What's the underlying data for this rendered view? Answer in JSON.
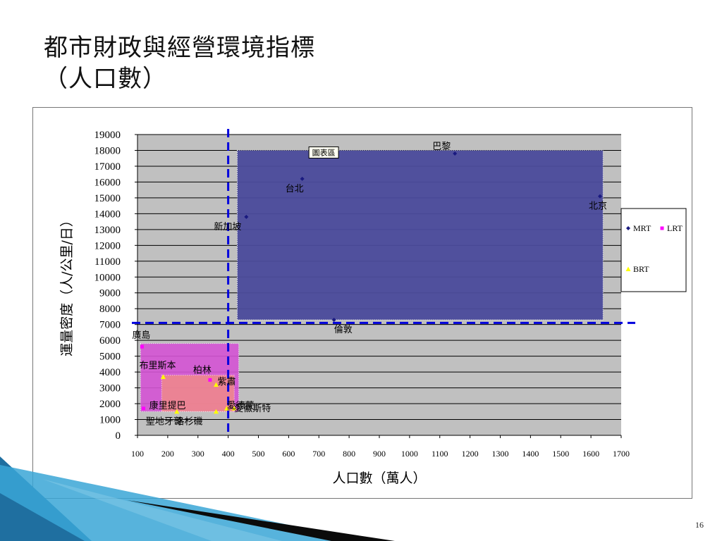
{
  "slide": {
    "title_line1": "都市財政與經營環境指標",
    "title_line2": "（人口數）",
    "page_number": "16"
  },
  "tooltip_label": "圖表區",
  "chart_data": {
    "type": "scatter",
    "xlabel": "人口數（萬人）",
    "ylabel": "運量密度（人/公里/日）",
    "xlim": [
      100,
      1700
    ],
    "ylim": [
      0,
      19000
    ],
    "x_ticks": [
      100,
      200,
      300,
      400,
      500,
      600,
      700,
      800,
      900,
      1000,
      1100,
      1200,
      1300,
      1400,
      1500,
      1600,
      1700
    ],
    "y_ticks": [
      0,
      1000,
      2000,
      3000,
      4000,
      5000,
      6000,
      7000,
      8000,
      9000,
      10000,
      11000,
      12000,
      13000,
      14000,
      15000,
      16000,
      17000,
      18000,
      19000
    ],
    "grid": true,
    "legend_position": "right",
    "colors": {
      "plot_bg": "#c0c0c0",
      "mrt": "#1a1a80",
      "lrt": "#ff00ff",
      "brt": "#ffff00",
      "mrt_zone": "#4b4b9c",
      "lrt_zone": "#d454d4",
      "brt_zone": "#f08a8a",
      "threshold": "#0000dd"
    },
    "series": [
      {
        "name": "MRT",
        "color": "#1a1a80",
        "marker": "diamond",
        "points": [
          {
            "x": 460,
            "y": 13800,
            "label": "新加坡"
          },
          {
            "x": 645,
            "y": 16200,
            "label": "台北"
          },
          {
            "x": 695,
            "y": 17600,
            "label": ""
          },
          {
            "x": 750,
            "y": 7300,
            "label": "倫敦"
          },
          {
            "x": 1150,
            "y": 17800,
            "label": "巴黎"
          },
          {
            "x": 1630,
            "y": 15100,
            "label": "北京"
          }
        ]
      },
      {
        "name": "LRT",
        "color": "#ff00ff",
        "marker": "square",
        "points": [
          {
            "x": 115,
            "y": 5600,
            "label": "廣島"
          },
          {
            "x": 340,
            "y": 3500,
            "label": "柏林"
          },
          {
            "x": 120,
            "y": 1700,
            "label": "康里提巴"
          }
        ]
      },
      {
        "name": "BRT",
        "color": "#ffff00",
        "marker": "triangle",
        "points": [
          {
            "x": 185,
            "y": 3700,
            "label": "布里斯本"
          },
          {
            "x": 360,
            "y": 3200,
            "label": "紫肅"
          },
          {
            "x": 230,
            "y": 1500,
            "label": "聖地牙哥"
          },
          {
            "x": 395,
            "y": 1700,
            "label": "愛德蒙"
          },
          {
            "x": 420,
            "y": 1700,
            "label": "愛徽斯特"
          },
          {
            "x": 360,
            "y": 1500,
            "label": "洛杉磯"
          }
        ]
      }
    ],
    "zones": [
      {
        "name": "MRT",
        "x": [
          430,
          1640
        ],
        "y": [
          7300,
          18000
        ]
      },
      {
        "name": "LRT",
        "x": [
          110,
          435
        ],
        "y": [
          1500,
          5800
        ]
      },
      {
        "name": "BRT",
        "x": [
          180,
          420
        ],
        "y": [
          1500,
          3800
        ]
      }
    ],
    "threshold_x": 400,
    "threshold_y": 7100
  }
}
